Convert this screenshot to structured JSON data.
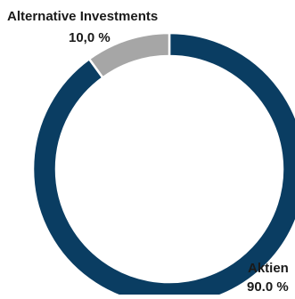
{
  "chart_data": {
    "type": "pie",
    "title": "",
    "slices": [
      {
        "name": "Aktien",
        "value": 90.0,
        "value_label": "90.0 %",
        "color": "#0a3d62"
      },
      {
        "name": "Alternative Investments",
        "value": 10.0,
        "value_label": "10,0 %",
        "color": "#a6a6a6"
      }
    ],
    "donut": true,
    "legend": "none",
    "slice_border_color": "#ffffff"
  }
}
